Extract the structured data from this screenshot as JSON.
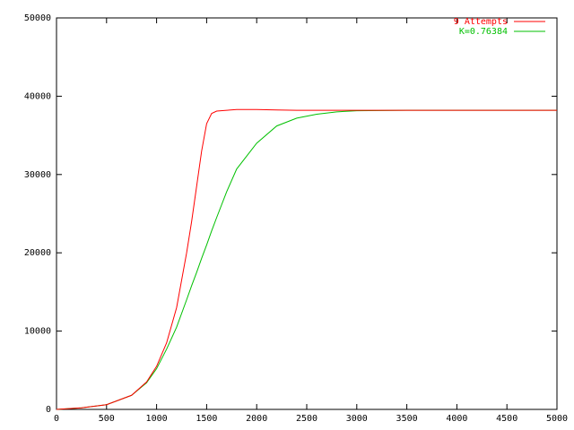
{
  "chart_data": {
    "type": "line",
    "x": [
      0,
      250,
      500,
      750,
      900,
      1000,
      1100,
      1200,
      1300,
      1350,
      1400,
      1450,
      1500,
      1550,
      1600,
      1700,
      1800,
      2000,
      2200,
      2400,
      2600,
      2800,
      3000,
      3500,
      4000,
      4500,
      5000
    ],
    "series": [
      {
        "name": "9 Attempts",
        "color": "#ff0000",
        "values": [
          0,
          200,
          600,
          1800,
          3500,
          5500,
          8500,
          13000,
          20000,
          24000,
          28500,
          33000,
          36500,
          37800,
          38100,
          38200,
          38300,
          38300,
          38250,
          38200,
          38200,
          38200,
          38200,
          38200,
          38200,
          38200,
          38200
        ]
      },
      {
        "name": "K=0.76384",
        "color": "#00c000",
        "values": [
          0,
          200,
          600,
          1800,
          3400,
          5200,
          7700,
          10500,
          14000,
          15800,
          17500,
          19300,
          21000,
          22800,
          24500,
          27800,
          30700,
          34000,
          36200,
          37200,
          37700,
          38000,
          38150,
          38200,
          38200,
          38200,
          38200
        ]
      }
    ],
    "xlim": [
      0,
      5000
    ],
    "xticks": [
      0,
      500,
      1000,
      1500,
      2000,
      2500,
      3000,
      3500,
      4000,
      4500,
      5000
    ],
    "ylim": [
      0,
      50000
    ],
    "yticks": [
      0,
      10000,
      20000,
      30000,
      40000,
      50000
    ],
    "legend": "upper right"
  }
}
